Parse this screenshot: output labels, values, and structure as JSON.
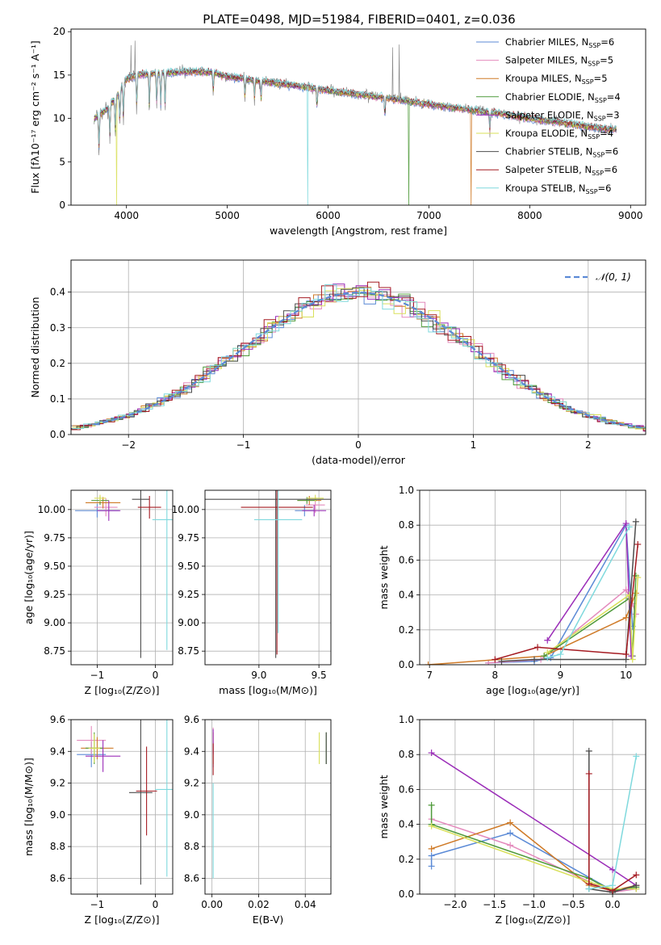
{
  "figure": {
    "title": "PLATE=0498, MJD=51984, FIBERID=0401, z=0.036"
  },
  "colors": {
    "Chabrier MILES": "#5b8ad6",
    "Salpeter MILES": "#e48bbd",
    "Kroupa MILES": "#cf7a27",
    "Chabrier ELODIE": "#4f9a3a",
    "Salpeter ELODIE": "#9b2db8",
    "Kroupa ELODIE": "#d9e05a",
    "Chabrier STELIB": "#4d4d4d",
    "Salpeter STELIB": "#a51b22",
    "Kroupa STELIB": "#7fd9dd",
    "data": "#8a8a8a",
    "normal_curve": "#5b8ad6"
  },
  "chart_data": [
    {
      "id": "spectrum",
      "type": "line",
      "title": "PLATE=0498, MJD=51984, FIBERID=0401, z=0.036",
      "xlabel": "wavelength [Angstrom, rest frame]",
      "ylabel": "Flux [fλ10⁻¹⁷ erg cm⁻² s⁻¹ A⁻¹]",
      "xlim": [
        3450,
        9150
      ],
      "ylim": [
        0,
        20.3
      ],
      "xticks": [
        4000,
        5000,
        6000,
        7000,
        8000,
        9000
      ],
      "yticks": [
        0,
        5,
        10,
        15,
        20
      ],
      "grid": false,
      "legend_position": "top-right",
      "legend": [
        {
          "series": "Chabrier MILES",
          "nssp": 6
        },
        {
          "series": "Salpeter MILES",
          "nssp": 5
        },
        {
          "series": "Kroupa MILES",
          "nssp": 5
        },
        {
          "series": "Chabrier ELODIE",
          "nssp": 4
        },
        {
          "series": "Salpeter ELODIE",
          "nssp": 3
        },
        {
          "series": "Kroupa ELODIE",
          "nssp": 4
        },
        {
          "series": "Chabrier STELIB",
          "nssp": 6
        },
        {
          "series": "Salpeter STELIB",
          "nssp": 6
        },
        {
          "series": "Kroupa STELIB",
          "nssp": 6
        }
      ],
      "continuum": {
        "x": [
          3680,
          3800,
          3900,
          4000,
          4100,
          4300,
          4500,
          4700,
          4860,
          5000,
          5200,
          5400,
          5600,
          5800,
          6000,
          6200,
          6400,
          6600,
          6800,
          7000,
          7200,
          7400,
          7600,
          7800,
          8000,
          8200,
          8400,
          8600,
          8860
        ],
        "y": [
          10.0,
          11.0,
          12.5,
          14.5,
          15.0,
          15.2,
          15.3,
          15.4,
          15.3,
          14.8,
          14.5,
          14.2,
          13.9,
          13.6,
          13.2,
          12.9,
          12.6,
          12.3,
          12.0,
          11.6,
          11.3,
          11.0,
          10.7,
          10.4,
          10.0,
          9.7,
          9.4,
          9.0,
          8.7
        ]
      },
      "model_dropouts": [
        {
          "series": "Kroupa ELODIE",
          "x": 3900
        },
        {
          "series": "Kroupa STELIB",
          "x": 5800
        },
        {
          "series": "Chabrier ELODIE",
          "x": 6800
        },
        {
          "series": "Kroupa MILES",
          "x": 7420
        }
      ]
    },
    {
      "id": "residuals",
      "type": "step",
      "xlabel": "(data-model)/error",
      "ylabel": "Normed distribution",
      "xlim": [
        -2.5,
        2.5
      ],
      "ylim": [
        0,
        0.49
      ],
      "xticks": [
        -2,
        -1,
        0,
        1,
        2
      ],
      "yticks": [
        0.0,
        0.1,
        0.2,
        0.3,
        0.4
      ],
      "grid": true,
      "legend_position": "top-right",
      "legend": [
        "𝒩(0, 1)"
      ],
      "bin_width": 0.1
    },
    {
      "id": "age-vs-Z",
      "type": "errorbar",
      "xlabel": "Z [log₁₀(Z/Z⊙)]",
      "ylabel": "age  [log₁₀(age/yr)]",
      "xlim": [
        -1.45,
        0.3
      ],
      "ylim": [
        8.63,
        10.17
      ],
      "xticks": [
        -1,
        0
      ],
      "yticks": [
        8.75,
        9.0,
        9.25,
        9.5,
        9.75,
        10.0
      ],
      "grid": true,
      "points": [
        {
          "series": "Chabrier MILES",
          "x": -1.0,
          "y": 9.99,
          "xerr": 0.38,
          "yerr": 0.06
        },
        {
          "series": "Salpeter MILES",
          "x": -0.85,
          "y": 10.02,
          "xerr": 0.2,
          "yerr": 0.08
        },
        {
          "series": "Kroupa MILES",
          "x": -0.9,
          "y": 10.06,
          "xerr": 0.3,
          "yerr": 0.05
        },
        {
          "series": "Chabrier ELODIE",
          "x": -0.95,
          "y": 10.08,
          "xerr": 0.15,
          "yerr": 0.04
        },
        {
          "series": "Salpeter ELODIE",
          "x": -0.8,
          "y": 9.99,
          "xerr": 0.2,
          "yerr": 0.09
        },
        {
          "series": "Kroupa ELODIE",
          "x": -0.95,
          "y": 10.1,
          "xerr": 0.1,
          "yerr": 0.03
        },
        {
          "series": "Chabrier STELIB",
          "x": -0.25,
          "y": 10.09,
          "xerr": 0.15,
          "yerr": 1.4
        },
        {
          "series": "Salpeter STELIB",
          "x": -0.1,
          "y": 10.02,
          "xerr": 0.2,
          "yerr": 0.1
        },
        {
          "series": "Kroupa STELIB",
          "x": 0.2,
          "y": 9.91,
          "xerr": 0.25,
          "yerr": 1.15
        }
      ]
    },
    {
      "id": "age-vs-mass",
      "type": "errorbar",
      "xlabel": "mass [log₁₀(M/M⊙)]",
      "ylabel": "",
      "xlim": [
        8.55,
        9.6
      ],
      "ylim": [
        8.63,
        10.17
      ],
      "xticks": [
        9.0,
        9.5
      ],
      "yticks": [
        8.75,
        9.0,
        9.25,
        9.5,
        9.75,
        10.0
      ],
      "grid": true,
      "points": [
        {
          "series": "Chabrier MILES",
          "x": 9.38,
          "y": 9.99,
          "xerr": 0.08,
          "yerr": 0.05
        },
        {
          "series": "Salpeter MILES",
          "x": 9.47,
          "y": 10.04,
          "xerr": 0.08,
          "yerr": 0.07
        },
        {
          "series": "Kroupa MILES",
          "x": 9.42,
          "y": 10.08,
          "xerr": 0.1,
          "yerr": 0.04
        },
        {
          "series": "Chabrier ELODIE",
          "x": 9.4,
          "y": 10.08,
          "xerr": 0.08,
          "yerr": 0.03
        },
        {
          "series": "Salpeter ELODIE",
          "x": 9.46,
          "y": 9.99,
          "xerr": 0.1,
          "yerr": 0.05
        },
        {
          "series": "Kroupa ELODIE",
          "x": 9.47,
          "y": 10.1,
          "xerr": 0.07,
          "yerr": 0.03
        },
        {
          "series": "Chabrier STELIB",
          "x": 9.14,
          "y": 10.09,
          "xerr": 0.6,
          "yerr": 1.4
        },
        {
          "series": "Salpeter STELIB",
          "x": 9.15,
          "y": 10.02,
          "xerr": 0.3,
          "yerr": 1.3
        },
        {
          "series": "Kroupa STELIB",
          "x": 9.16,
          "y": 9.91,
          "xerr": 0.2,
          "yerr": 1.0
        }
      ]
    },
    {
      "id": "weight-vs-age",
      "type": "line",
      "xlabel": "age  [log₁₀(age/yr)]",
      "ylabel": "mass weight",
      "xlim": [
        6.85,
        10.3
      ],
      "ylim": [
        0,
        1.0
      ],
      "xticks": [
        7,
        8,
        9,
        10
      ],
      "yticks": [
        0.0,
        0.2,
        0.4,
        0.6,
        0.8,
        1.0
      ],
      "grid": true,
      "series": [
        {
          "series": "Chabrier MILES",
          "x": [
            7.9,
            8.6,
            8.85,
            10.0,
            10.1
          ],
          "y": [
            0.01,
            0.02,
            0.04,
            0.8,
            0.22
          ]
        },
        {
          "series": "Salpeter MILES",
          "x": [
            7.9,
            8.7,
            10.0,
            10.1,
            10.15
          ],
          "y": [
            0.01,
            0.03,
            0.43,
            0.35,
            0.29
          ]
        },
        {
          "series": "Kroupa MILES",
          "x": [
            6.98,
            8.75,
            10.0,
            10.15
          ],
          "y": [
            0.0,
            0.05,
            0.27,
            0.41
          ]
        },
        {
          "series": "Chabrier ELODIE",
          "x": [
            8.75,
            10.05,
            10.1,
            10.15
          ],
          "y": [
            0.05,
            0.38,
            0.05,
            0.51
          ]
        },
        {
          "series": "Salpeter ELODIE",
          "x": [
            8.8,
            10.0,
            10.08
          ],
          "y": [
            0.14,
            0.81,
            0.05
          ]
        },
        {
          "series": "Kroupa ELODIE",
          "x": [
            8.8,
            10.05,
            10.1,
            10.18
          ],
          "y": [
            0.07,
            0.4,
            0.03,
            0.5
          ]
        },
        {
          "series": "Chabrier STELIB",
          "x": [
            8.1,
            8.6,
            10.0,
            10.15
          ],
          "y": [
            0.02,
            0.03,
            0.03,
            0.82
          ]
        },
        {
          "series": "Salpeter STELIB",
          "x": [
            8.0,
            8.65,
            10.0,
            10.18
          ],
          "y": [
            0.03,
            0.1,
            0.06,
            0.69
          ]
        },
        {
          "series": "Kroupa STELIB",
          "x": [
            8.8,
            9.0,
            10.05
          ],
          "y": [
            0.04,
            0.06,
            0.79
          ]
        }
      ]
    },
    {
      "id": "mass-vs-Z",
      "type": "errorbar",
      "xlabel": "Z [log₁₀(Z/Z⊙)]",
      "ylabel": "mass [log₁₀(M/M⊙)]",
      "xlim": [
        -1.45,
        0.3
      ],
      "ylim": [
        8.5,
        9.6
      ],
      "xticks": [
        -1,
        0
      ],
      "yticks": [
        8.6,
        8.8,
        9.0,
        9.2,
        9.4,
        9.6
      ],
      "grid": true,
      "points": [
        {
          "series": "Chabrier MILES",
          "x": -1.1,
          "y": 9.38,
          "xerr": 0.25,
          "yerr": 0.08
        },
        {
          "series": "Salpeter MILES",
          "x": -1.1,
          "y": 9.47,
          "xerr": 0.25,
          "yerr": 0.09
        },
        {
          "series": "Kroupa MILES",
          "x": -1.0,
          "y": 9.42,
          "xerr": 0.28,
          "yerr": 0.07
        },
        {
          "series": "Chabrier ELODIE",
          "x": -1.05,
          "y": 9.42,
          "xerr": 0.15,
          "yerr": 0.1
        },
        {
          "series": "Salpeter ELODIE",
          "x": -0.9,
          "y": 9.37,
          "xerr": 0.3,
          "yerr": 0.1
        },
        {
          "series": "Kroupa ELODIE",
          "x": -1.05,
          "y": 9.42,
          "xerr": 0.1,
          "yerr": 0.09
        },
        {
          "series": "Chabrier STELIB",
          "x": -0.25,
          "y": 9.14,
          "xerr": 0.2,
          "yerr": 0.58
        },
        {
          "series": "Salpeter STELIB",
          "x": -0.15,
          "y": 9.15,
          "xerr": 0.18,
          "yerr": 0.28
        },
        {
          "series": "Kroupa STELIB",
          "x": 0.2,
          "y": 9.16,
          "xerr": 0.2,
          "yerr": 0.55
        }
      ]
    },
    {
      "id": "mass-vs-EBV",
      "type": "errorbar",
      "xlabel": "E(B-V)",
      "ylabel": "",
      "xlim": [
        -0.003,
        0.051
      ],
      "ylim": [
        8.5,
        9.6
      ],
      "xticks": [
        0.0,
        0.02,
        0.04
      ],
      "yticks": [
        8.6,
        8.8,
        9.0,
        9.2,
        9.4,
        9.6
      ],
      "grid": true,
      "points": [
        {
          "series": "Chabrier MILES",
          "x": 0.0005,
          "y": 9.38,
          "yerr": 0.08
        },
        {
          "series": "Salpeter MILES",
          "x": 0.0005,
          "y": 9.47,
          "yerr": 0.08
        },
        {
          "series": "Kroupa MILES",
          "x": 0.0005,
          "y": 9.42,
          "yerr": 0.1
        },
        {
          "series": "Chabrier ELODIE",
          "x": 0.049,
          "y": 9.42,
          "yerr": 0.1
        },
        {
          "series": "Salpeter ELODIE",
          "x": 0.0005,
          "y": 9.46,
          "yerr": 0.08
        },
        {
          "series": "Kroupa ELODIE",
          "x": 0.046,
          "y": 9.42,
          "yerr": 0.1
        },
        {
          "series": "Chabrier STELIB",
          "x": 0.049,
          "y": 9.42,
          "yerr": 0.1
        },
        {
          "series": "Salpeter STELIB",
          "x": 0.0005,
          "y": 9.35,
          "yerr": 0.1
        },
        {
          "series": "Kroupa STELIB",
          "x": 0.0005,
          "y": 8.9,
          "yerr": 0.3
        }
      ]
    },
    {
      "id": "weight-vs-Z",
      "type": "line",
      "xlabel": "Z [log₁₀(Z/Z⊙)]",
      "ylabel": "mass weight",
      "xlim": [
        -2.45,
        0.42
      ],
      "ylim": [
        0,
        1.0
      ],
      "xticks": [
        -2.0,
        -1.5,
        -1.0,
        -0.5,
        0.0
      ],
      "yticks": [
        0.0,
        0.2,
        0.4,
        0.6,
        0.8,
        1.0
      ],
      "grid": true,
      "series": [
        {
          "series": "Chabrier MILES",
          "x": [
            -2.3,
            -2.3,
            -1.3,
            0.0,
            0.3
          ],
          "y": [
            0.16,
            0.22,
            0.35,
            0.02,
            0.03
          ]
        },
        {
          "series": "Salpeter MILES",
          "x": [
            -2.3,
            -1.3,
            0.0,
            0.3
          ],
          "y": [
            0.43,
            0.28,
            0.01,
            0.03
          ]
        },
        {
          "series": "Kroupa MILES",
          "x": [
            -2.3,
            -1.3,
            -0.3,
            0.0,
            0.3
          ],
          "y": [
            0.26,
            0.41,
            0.05,
            0.02,
            0.05
          ]
        },
        {
          "series": "Chabrier ELODIE",
          "x": [
            -2.3,
            -2.3,
            -0.3,
            0.0,
            0.3
          ],
          "y": [
            0.51,
            0.4,
            0.09,
            0.02,
            0.04
          ]
        },
        {
          "series": "Salpeter ELODIE",
          "x": [
            -2.3,
            0.0,
            0.3
          ],
          "y": [
            0.81,
            0.14,
            0.05
          ]
        },
        {
          "series": "Kroupa ELODIE",
          "x": [
            -2.3,
            -0.3,
            0.0,
            0.3
          ],
          "y": [
            0.39,
            0.07,
            0.03,
            0.03
          ]
        },
        {
          "series": "Chabrier STELIB",
          "x": [
            -0.3,
            -0.3,
            0.0,
            0.3
          ],
          "y": [
            0.82,
            0.03,
            0.01,
            0.05
          ]
        },
        {
          "series": "Salpeter STELIB",
          "x": [
            -0.3,
            -0.3,
            0.0,
            0.3
          ],
          "y": [
            0.69,
            0.06,
            0.02,
            0.11
          ]
        },
        {
          "series": "Kroupa STELIB",
          "x": [
            -0.3,
            0.0,
            0.3
          ],
          "y": [
            0.03,
            0.05,
            0.79
          ]
        }
      ]
    }
  ]
}
